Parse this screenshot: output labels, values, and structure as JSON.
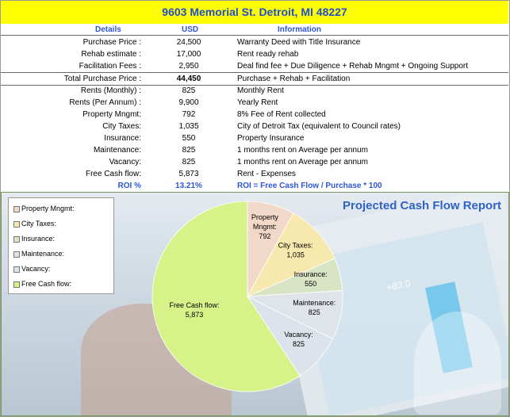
{
  "title": "9603 Memorial St. Detroit, MI 48227",
  "columns": {
    "details": "Details",
    "usd": "USD",
    "information": "Information"
  },
  "rows": [
    {
      "label": "Purchase Price :",
      "usd": "24,500",
      "info": "Warranty Deed with Title Insurance"
    },
    {
      "label": "Rehab estimate :",
      "usd": "17,000",
      "info": "Rent ready rehab"
    },
    {
      "label": "Facilitation Fees :",
      "usd": "2,950",
      "info": "Deal find fee + Due Diligence + Rehab Mngmt + Ongoing Support"
    },
    {
      "label": "Total Purchase Price :",
      "usd": "44,450",
      "info": "Purchase + Rehab + Facilitation"
    },
    {
      "label": "Rents (Monthly) :",
      "usd": "825",
      "info": "Monthly Rent"
    },
    {
      "label": "Rents (Per Annum) :",
      "usd": "9,900",
      "info": "Yearly Rent"
    },
    {
      "label": "Property Mngmt:",
      "usd": "792",
      "info": "8%  Fee of Rent collected"
    },
    {
      "label": "City Taxes:",
      "usd": "1,035",
      "info": "City of Detroit Tax (equivalent to Council rates)"
    },
    {
      "label": "Insurance:",
      "usd": "550",
      "info": "Property Insurance"
    },
    {
      "label": "Maintenance:",
      "usd": "825",
      "info": "1 months rent on Average per annum"
    },
    {
      "label": "Vacancy:",
      "usd": "825",
      "info": "1 months rent on Average per annum"
    },
    {
      "label": "Free Cash flow:",
      "usd": "5,873",
      "info": "Rent - Expenses"
    },
    {
      "label": "ROI %",
      "usd": "13.21%",
      "info": "ROI = Free Cash Flow / Purchase * 100"
    }
  ],
  "background_label": "+83.0",
  "chart_data": {
    "type": "pie",
    "title": "Projected Cash Flow Report",
    "legend_position": "top-left",
    "slices": [
      {
        "name": "Property Mngmt:",
        "value": 792,
        "color": "#f2d8c8"
      },
      {
        "name": "City Taxes:",
        "value": 1035,
        "color": "#f7e8ad"
      },
      {
        "name": "Insurance:",
        "value": 550,
        "color": "#d9e4c4"
      },
      {
        "name": "Maintenance:",
        "value": 825,
        "color": "#dfe4ea"
      },
      {
        "name": "Vacancy:",
        "value": 825,
        "color": "#dde3ea"
      },
      {
        "name": "Free Cash flow:",
        "value": 5873,
        "color": "#d8f28a"
      }
    ],
    "data_labels": [
      {
        "name": "Property\nMngmt:",
        "value": "792"
      },
      {
        "name": "City Taxes:",
        "value": "1,035"
      },
      {
        "name": "Insurance:",
        "value": "550"
      },
      {
        "name": "Maintenance:",
        "value": "825"
      },
      {
        "name": "Vacancy:",
        "value": "825"
      },
      {
        "name": "Free Cash flow:",
        "value": "5,873"
      }
    ]
  }
}
